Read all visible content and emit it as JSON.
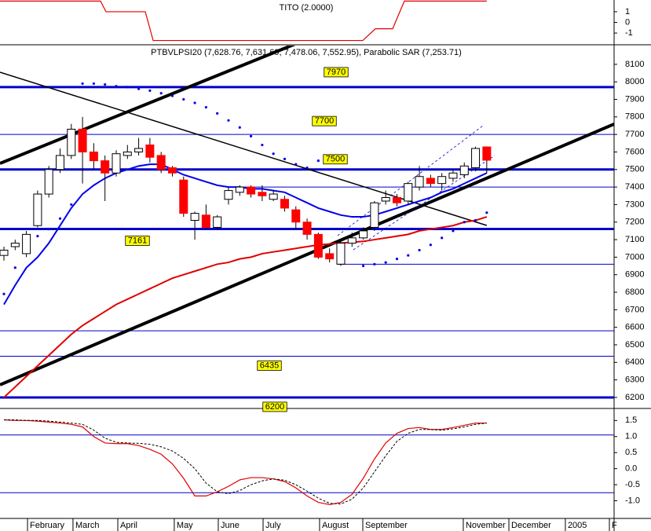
{
  "chart_data": [
    {
      "type": "line",
      "title": "TITO (2.0000)",
      "xlim": [
        -0.35,
        54.34
      ],
      "ylim": [
        -2.1,
        2.1
      ],
      "yticks": [
        1,
        0,
        -1
      ],
      "series": [
        {
          "color": "#e00000",
          "x": [
            -0.35,
            8.6,
            9.09,
            12.59,
            13.29,
            31.96,
            33.08,
            34.62,
            35.66,
            43.0
          ],
          "values": [
            2,
            2,
            1,
            1,
            -1.7,
            -1.7,
            -0.6,
            -0.6,
            2,
            2
          ]
        }
      ]
    },
    {
      "type": "candlestick",
      "title": "PTBVLPSI20 (7,628.76, 7,631.69, 7,478.06, 7,552.95), Parabolic SAR (7,253.71)",
      "xlim": [
        -0.35,
        54.34
      ],
      "ylim": [
        6137,
        8207
      ],
      "yticks": [
        6200,
        6300,
        6400,
        6500,
        6600,
        6700,
        6800,
        6900,
        7000,
        7100,
        7200,
        7300,
        7400,
        7500,
        7600,
        7700,
        7800,
        7900,
        8000,
        8100
      ],
      "x": [
        0,
        1,
        2,
        3,
        4,
        5,
        6,
        7,
        8,
        9,
        10,
        11,
        12,
        13,
        14,
        15,
        16,
        17,
        18,
        19,
        20,
        21,
        22,
        23,
        24,
        25,
        26,
        27,
        28,
        29,
        30,
        31,
        32,
        33,
        34,
        35,
        36,
        37,
        38,
        39,
        40,
        41,
        42,
        43
      ],
      "up_color": "#ffffff",
      "down_color": "#ff0000",
      "open": [
        7010,
        7060,
        7020,
        7180,
        7360,
        7500,
        7580,
        7730,
        7600,
        7550,
        7480,
        7580,
        7600,
        7640,
        7580,
        7510,
        7440,
        7210,
        7240,
        7170,
        7330,
        7370,
        7400,
        7370,
        7330,
        7330,
        7270,
        7200,
        7130,
        7020,
        6960,
        7080,
        7110,
        7170,
        7320,
        7340,
        7320,
        7400,
        7450,
        7420,
        7450,
        7470,
        7510,
        7628.76
      ],
      "high": [
        7060,
        7100,
        7150,
        7380,
        7520,
        7620,
        7760,
        7800,
        7650,
        7580,
        7610,
        7640,
        7680,
        7680,
        7600,
        7520,
        7460,
        7260,
        7300,
        7240,
        7400,
        7410,
        7410,
        7410,
        7380,
        7350,
        7290,
        7220,
        7140,
        7050,
        7090,
        7140,
        7170,
        7320,
        7380,
        7360,
        7430,
        7520,
        7470,
        7480,
        7500,
        7540,
        7630,
        7631.69
      ],
      "low": [
        6980,
        7040,
        7000,
        7170,
        7340,
        7480,
        7560,
        7420,
        7500,
        7320,
        7460,
        7560,
        7580,
        7540,
        7480,
        7460,
        7230,
        7100,
        7160,
        7160,
        7300,
        7350,
        7340,
        7320,
        7320,
        7260,
        7160,
        7100,
        6990,
        6970,
        6950,
        7060,
        7100,
        7150,
        7300,
        7290,
        7300,
        7380,
        7400,
        7380,
        7430,
        7450,
        7490,
        7478.06
      ],
      "close": [
        7040,
        7080,
        7130,
        7360,
        7500,
        7580,
        7730,
        7600,
        7550,
        7480,
        7590,
        7600,
        7620,
        7570,
        7500,
        7480,
        7250,
        7250,
        7170,
        7230,
        7380,
        7400,
        7360,
        7350,
        7360,
        7280,
        7200,
        7130,
        7000,
        6990,
        7080,
        7110,
        7150,
        7310,
        7340,
        7310,
        7420,
        7460,
        7420,
        7460,
        7480,
        7520,
        7620,
        7552.95
      ],
      "overlays": [
        {
          "type": "line",
          "color": "#0000ee",
          "values": [
            6730,
            6840,
            6940,
            7000,
            7080,
            7180,
            7280,
            7360,
            7410,
            7450,
            7480,
            7500,
            7520,
            7530,
            7530,
            7500,
            7470,
            7450,
            7430,
            7410,
            7400,
            7400,
            7390,
            7390,
            7380,
            7370,
            7340,
            7310,
            7280,
            7260,
            7240,
            7230,
            7230,
            7240,
            7260,
            7280,
            7300,
            7320,
            7340,
            7370,
            7390,
            7420,
            7450,
            7480
          ]
        },
        {
          "type": "line",
          "color": "#e00000",
          "values": [
            6200,
            6260,
            6320,
            6380,
            6440,
            6500,
            6560,
            6610,
            6650,
            6690,
            6730,
            6760,
            6790,
            6820,
            6850,
            6880,
            6900,
            6920,
            6940,
            6960,
            6970,
            6990,
            7000,
            7020,
            7030,
            7040,
            7050,
            7060,
            7070,
            7075,
            7080,
            7085,
            7090,
            7100,
            7110,
            7120,
            7130,
            7150,
            7160,
            7170,
            7180,
            7200,
            7210,
            7230
          ]
        },
        {
          "type": "scatter",
          "color": "#0000ee",
          "values": [
            6790,
            6940,
            7050,
            7120,
            7160,
            7220,
            7300,
            7990,
            7990,
            7985,
            7975,
            7970,
            7960,
            7950,
            7935,
            7920,
            7900,
            7880,
            7855,
            7820,
            7780,
            7740,
            7690,
            7640,
            7590,
            7560,
            7530,
            7510,
            7550,
            7500,
            null,
            null,
            6950,
            6960,
            6970,
            6990,
            7010,
            7040,
            7070,
            7110,
            7150,
            7200,
            7210,
            7253.71
          ]
        }
      ],
      "trendlines": [
        {
          "style": "thick",
          "x": [
            -0.35,
            26.22
          ],
          "values": [
            7535,
            8223
          ]
        },
        {
          "style": "thick",
          "x": [
            -0.35,
            54.34
          ],
          "values": [
            6272,
            7759
          ]
        },
        {
          "style": "thin",
          "x": [
            -0.35,
            43.0
          ],
          "values": [
            8055,
            7181
          ]
        },
        {
          "style": "dashed",
          "x": [
            29.72,
            42.66
          ],
          "values": [
            7123,
            7750
          ]
        },
        {
          "style": "dashed",
          "x": [
            31.12,
            43.71
          ],
          "values": [
            7042,
            7580
          ]
        }
      ],
      "level_color": "#0000cc",
      "levels": [
        {
          "value": 7970,
          "label": "7970",
          "style": "thick"
        },
        {
          "value": 7700,
          "label": "7700",
          "style": "thin"
        },
        {
          "value": 7500,
          "label": "7500",
          "style": "thick"
        },
        {
          "value": 7400,
          "style": "thin",
          "x": 19.93
        },
        {
          "value": 7161,
          "label": "7161",
          "style": "thick"
        },
        {
          "value": 6960,
          "style": "thin",
          "x": 29.72
        },
        {
          "value": 6580,
          "style": "thin"
        },
        {
          "value": 6435,
          "label": "6435",
          "style": "thin"
        },
        {
          "value": 6200,
          "label": "6200",
          "style": "thick"
        }
      ]
    },
    {
      "type": "line",
      "xlim": [
        -0.35,
        54.34
      ],
      "ylim": [
        -1.55,
        1.85
      ],
      "yticks": [
        1.5,
        {
          "value": 1.0,
          "label": "1.0"
        },
        0.5,
        {
          "value": 0,
          "label": "0.0"
        },
        -0.5,
        {
          "value": -1.0,
          "label": "-1.0"
        }
      ],
      "x": [
        0,
        1,
        2,
        3,
        4,
        5,
        6,
        7,
        8,
        9,
        10,
        11,
        12,
        13,
        14,
        15,
        16,
        17,
        18,
        19,
        20,
        21,
        22,
        23,
        24,
        25,
        26,
        27,
        28,
        29,
        30,
        31,
        32,
        33,
        34,
        35,
        36,
        37,
        38,
        39,
        40,
        41,
        42,
        43
      ],
      "level_color": "#0000cc",
      "levels": [
        {
          "value": 1.05,
          "style": "thin"
        },
        {
          "value": -0.75,
          "style": "thin"
        }
      ],
      "series": [
        {
          "color": "#e00000",
          "values": [
            1.52,
            1.5,
            1.5,
            1.48,
            1.45,
            1.42,
            1.38,
            1.3,
            1.0,
            0.8,
            0.78,
            0.78,
            0.72,
            0.6,
            0.45,
            0.15,
            -0.3,
            -0.85,
            -0.85,
            -0.72,
            -0.55,
            -0.35,
            -0.28,
            -0.28,
            -0.32,
            -0.4,
            -0.6,
            -0.85,
            -1.05,
            -1.12,
            -1.05,
            -0.8,
            -0.3,
            0.3,
            0.8,
            1.1,
            1.25,
            1.28,
            1.22,
            1.22,
            1.28,
            1.35,
            1.42,
            1.42
          ]
        },
        {
          "color": "#000000",
          "dashed": true,
          "values": [
            1.52,
            1.52,
            1.5,
            1.5,
            1.48,
            1.45,
            1.42,
            1.38,
            1.2,
            0.95,
            0.82,
            0.8,
            0.79,
            0.76,
            0.68,
            0.55,
            0.32,
            0.0,
            -0.45,
            -0.72,
            -0.78,
            -0.68,
            -0.5,
            -0.38,
            -0.32,
            -0.36,
            -0.5,
            -0.7,
            -0.92,
            -1.08,
            -1.1,
            -0.95,
            -0.6,
            -0.1,
            0.4,
            0.85,
            1.1,
            1.22,
            1.22,
            1.2,
            1.24,
            1.3,
            1.38,
            1.42
          ]
        }
      ],
      "xticks": [
        {
          "value": 2.1,
          "label": "February"
        },
        {
          "value": 6.15,
          "label": "March"
        },
        {
          "value": 10.14,
          "label": "April"
        },
        {
          "value": 15.17,
          "label": "May"
        },
        {
          "value": 19.09,
          "label": "June"
        },
        {
          "value": 23.08,
          "label": "July"
        },
        {
          "value": 28.11,
          "label": "August"
        },
        {
          "value": 31.96,
          "label": "September"
        },
        {
          "value": 40.91,
          "label": "November"
        },
        {
          "value": 44.97,
          "label": "December"
        },
        {
          "value": 50.0,
          "label": "2005"
        },
        {
          "value": 53.92,
          "label": "F"
        }
      ]
    }
  ]
}
